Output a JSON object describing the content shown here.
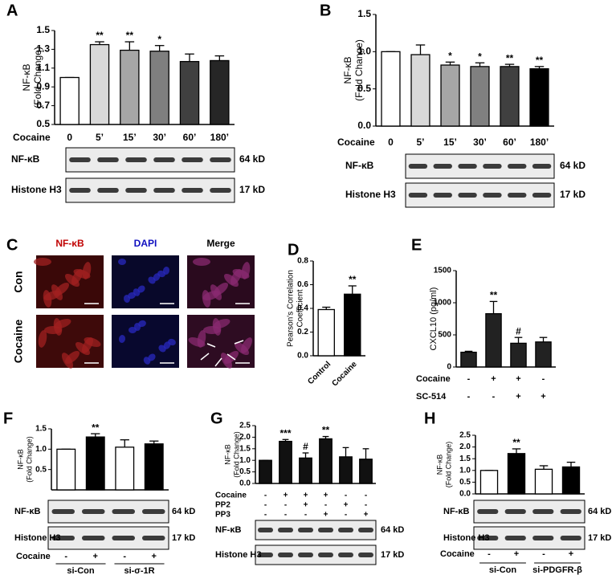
{
  "chart_data": [
    {
      "panel": "A",
      "type": "bar",
      "ylabel": [
        "NF-κB",
        "(Fold Change)"
      ],
      "xlabel": "Cocaine",
      "categories": [
        "0",
        "5’",
        "15’",
        "30’",
        "60’",
        "180’"
      ],
      "values": [
        1.0,
        1.35,
        1.29,
        1.28,
        1.17,
        1.18
      ],
      "errors": [
        0,
        0.03,
        0.09,
        0.06,
        0.08,
        0.05
      ],
      "significance": [
        null,
        "**",
        "**",
        "*",
        null,
        null
      ],
      "colors": [
        "#ffffff",
        "#d9d9d9",
        "#a6a6a6",
        "#7f7f7f",
        "#404040",
        "#262626"
      ],
      "ylim": [
        0.5,
        1.5
      ],
      "yticks": [
        0.5,
        0.7,
        0.9,
        1.1,
        1.3,
        1.5
      ],
      "blot": [
        {
          "label": "NF-κB",
          "size": "64 kD"
        },
        {
          "label": "Histone H3",
          "size": "17 kD"
        }
      ]
    },
    {
      "panel": "B",
      "type": "bar",
      "ylabel": [
        "NF-κB",
        "(Fold Change)"
      ],
      "xlabel": "Cocaine",
      "categories": [
        "0",
        "5’",
        "15’",
        "30’",
        "60’",
        "180’"
      ],
      "values": [
        1.0,
        0.96,
        0.82,
        0.8,
        0.8,
        0.77
      ],
      "errors": [
        0,
        0.13,
        0.04,
        0.05,
        0.03,
        0.03
      ],
      "significance": [
        null,
        null,
        "*",
        "*",
        "**",
        "**"
      ],
      "colors": [
        "#ffffff",
        "#d9d9d9",
        "#a6a6a6",
        "#808080",
        "#404040",
        "#000000"
      ],
      "ylim": [
        0,
        1.5
      ],
      "yticks": [
        {
          "value": 0,
          "label": "0.0"
        },
        0.5,
        {
          "value": 1,
          "label": "1.0"
        },
        1.5
      ],
      "blot": [
        {
          "label": "NF-κB",
          "size": "64 kD"
        },
        {
          "label": "Histone H3",
          "size": "17 kD"
        }
      ]
    },
    {
      "panel": "D",
      "type": "bar",
      "ylabel": [
        "Pearson's Correlation",
        "Coefficient"
      ],
      "categories": [
        "Control",
        "Cocaine"
      ],
      "values": [
        0.39,
        0.52
      ],
      "errors": [
        0.02,
        0.07
      ],
      "significance": [
        null,
        "**"
      ],
      "colors": [
        "#ffffff",
        "#000000"
      ],
      "ylim": [
        0,
        0.8
      ],
      "yticks": [
        {
          "value": 0,
          "label": "0.0"
        },
        0.2,
        0.4,
        0.6,
        0.8
      ]
    },
    {
      "panel": "E",
      "type": "bar",
      "ylabel": [
        "CXCL10 (pg/ml)"
      ],
      "values": [
        230,
        830,
        370,
        390
      ],
      "errors": [
        15,
        190,
        90,
        70
      ],
      "significance": [
        null,
        "**",
        "#",
        null
      ],
      "colors": [
        "#222222",
        "#222222",
        "#222222",
        "#222222"
      ],
      "ylim": [
        0,
        1500
      ],
      "yticks": [
        0,
        500,
        1000,
        1500
      ],
      "conditions": [
        {
          "label": "Cocaine",
          "marks": [
            "-",
            "+",
            "+",
            "-"
          ]
        },
        {
          "label": "SC-514",
          "marks": [
            "-",
            "-",
            "+",
            "+"
          ]
        }
      ]
    },
    {
      "panel": "F",
      "type": "bar",
      "ylabel": [
        "NF-κB",
        "(Fold Change)"
      ],
      "values": [
        1.0,
        1.3,
        1.05,
        1.13
      ],
      "errors": [
        0,
        0.08,
        0.18,
        0.07
      ],
      "significance": [
        null,
        "**",
        null,
        null
      ],
      "colors": [
        "#ffffff",
        "#000000",
        "#ffffff",
        "#000000"
      ],
      "ylim": [
        0,
        1.5
      ],
      "yticks": [
        0.5,
        {
          "value": 1,
          "label": "1.0"
        },
        1.5
      ],
      "conditions": [
        {
          "label": "Cocaine",
          "marks": [
            "-",
            "+",
            "-",
            "+"
          ]
        }
      ],
      "groups": [
        "si-Con",
        "si-σ-1R"
      ],
      "blot": [
        {
          "label": "NF-κB",
          "size": "64 kD"
        },
        {
          "label": "Histone H3",
          "size": "17 kD"
        }
      ]
    },
    {
      "panel": "G",
      "type": "bar",
      "ylabel": [
        "NF-κB",
        "(Fold Change)"
      ],
      "values": [
        1.0,
        1.82,
        1.1,
        1.93,
        1.15,
        1.05
      ],
      "errors": [
        0,
        0.08,
        0.22,
        0.1,
        0.4,
        0.45
      ],
      "significance": [
        null,
        "***",
        "#",
        "**",
        null,
        null
      ],
      "colors": [
        "#111111",
        "#111111",
        "#111111",
        "#111111",
        "#111111",
        "#111111"
      ],
      "ylim": [
        0,
        2.5
      ],
      "yticks": [
        {
          "value": 0,
          "label": "0.0"
        },
        0.5,
        {
          "value": 1,
          "label": "1.0"
        },
        1.5,
        {
          "value": 2,
          "label": "2.0"
        },
        2.5
      ],
      "conditions": [
        {
          "label": "Cocaine",
          "marks": [
            "-",
            "+",
            "+",
            "+",
            "-",
            "-"
          ]
        },
        {
          "label": "PP2",
          "marks": [
            "-",
            "-",
            "+",
            "-",
            "+",
            "-"
          ]
        },
        {
          "label": "PP3",
          "marks": [
            "-",
            "-",
            "-",
            "+",
            "-",
            "+"
          ]
        }
      ],
      "blot": [
        {
          "label": "NF-κB",
          "size": "64 kD"
        },
        {
          "label": "Histone H3",
          "size": "17 kD"
        }
      ]
    },
    {
      "panel": "H",
      "type": "bar",
      "ylabel": [
        "NF-κB",
        "(Fold Change)"
      ],
      "values": [
        1.0,
        1.72,
        1.05,
        1.15
      ],
      "errors": [
        0,
        0.2,
        0.15,
        0.2
      ],
      "significance": [
        null,
        "**",
        null,
        null
      ],
      "colors": [
        "#ffffff",
        "#000000",
        "#ffffff",
        "#000000"
      ],
      "ylim": [
        0,
        2.5
      ],
      "yticks": [
        {
          "value": 0,
          "label": "0.0"
        },
        0.5,
        {
          "value": 1,
          "label": "1.0"
        },
        1.5,
        {
          "value": 2,
          "label": "2.0"
        },
        2.5
      ],
      "conditions": [
        {
          "label": "Cocaine",
          "marks": [
            "-",
            "+",
            "-",
            "+"
          ]
        }
      ],
      "groups": [
        "si-Con",
        "si-PDGFR-β"
      ],
      "blot": [
        {
          "label": "NF-κB",
          "size": "64 kD"
        },
        {
          "label": "Histone H3",
          "size": "17 kD"
        }
      ]
    }
  ],
  "panel_c": {
    "panel": "C",
    "columns": [
      {
        "label": "NF-κB",
        "color": "#c00000"
      },
      {
        "label": "DAPI",
        "color": "#1010c0"
      },
      {
        "label": "Merge",
        "color": "#000000"
      }
    ],
    "rows": [
      "Con",
      "Cocaine"
    ]
  }
}
